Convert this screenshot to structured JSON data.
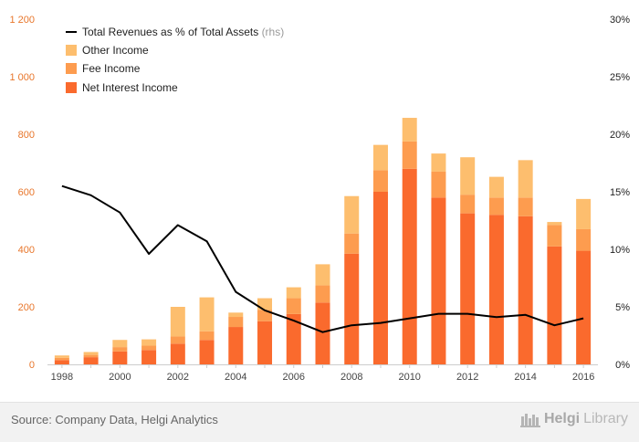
{
  "colors": {
    "net_interest": "#fa6a2d",
    "fee": "#fd9c4f",
    "other": "#fdbe6e",
    "line": "#000000",
    "left_axis_text": "#e8762b",
    "right_axis_text": "#222222",
    "axis_text": "#444444"
  },
  "chart_data": {
    "type": "bar",
    "stacked": true,
    "categories": [
      "1998",
      "1999",
      "2000",
      "2001",
      "2002",
      "2003",
      "2004",
      "2005",
      "2006",
      "2007",
      "2008",
      "2009",
      "2010",
      "2011",
      "2012",
      "2013",
      "2014",
      "2015",
      "2016"
    ],
    "series": [
      {
        "name": "Net Interest Income",
        "values": [
          15,
          25,
          45,
          50,
          72,
          85,
          130,
          150,
          175,
          215,
          385,
          600,
          680,
          580,
          525,
          520,
          515,
          410,
          395
        ]
      },
      {
        "name": "Fee Income",
        "values": [
          8,
          8,
          15,
          15,
          25,
          30,
          35,
          40,
          55,
          60,
          70,
          75,
          95,
          90,
          65,
          60,
          65,
          75,
          75
        ]
      },
      {
        "name": "Other Income",
        "values": [
          8,
          10,
          25,
          22,
          103,
          118,
          15,
          40,
          38,
          73,
          130,
          88,
          82,
          63,
          130,
          72,
          130,
          10,
          105
        ]
      }
    ],
    "line": {
      "name": "Total Revenues as % of Total Assets",
      "suffix": "(rhs)",
      "values": [
        15.5,
        14.7,
        13.2,
        9.6,
        12.1,
        10.7,
        6.3,
        4.7,
        3.8,
        2.8,
        3.4,
        3.6,
        4.0,
        4.4,
        4.4,
        4.1,
        4.3,
        3.4,
        4.0
      ]
    },
    "ylim_left": [
      0,
      1200
    ],
    "yticks_left": [
      "0",
      "200",
      "400",
      "600",
      "800",
      "1 000",
      "1 200"
    ],
    "ylim_right": [
      0,
      30
    ],
    "yticks_right": [
      "0%",
      "5%",
      "10%",
      "15%",
      "20%",
      "25%",
      "30%"
    ],
    "xticks": [
      "1998",
      "2000",
      "2002",
      "2004",
      "2006",
      "2008",
      "2010",
      "2012",
      "2014",
      "2016"
    ],
    "legend_position": "top-left",
    "grid": false
  },
  "footer": {
    "source": "Source: Company Data, Helgi Analytics",
    "logo_a": "Helgi",
    "logo_b": "Library"
  }
}
